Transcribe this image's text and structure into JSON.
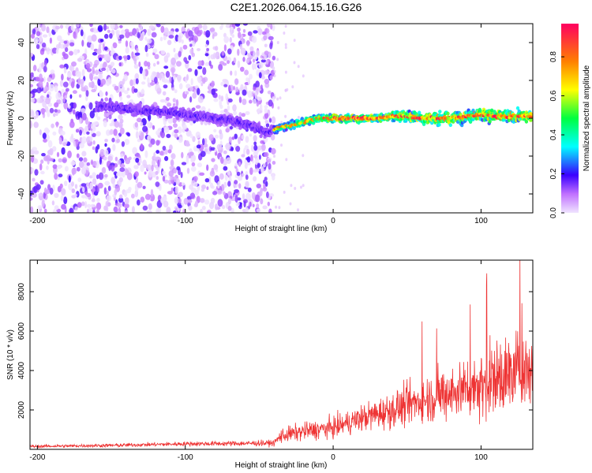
{
  "title": "C2E1.2026.064.15.16.G26",
  "chart_data": [
    {
      "type": "heatmap",
      "xlabel": "Height of straight line (km)",
      "ylabel": "Frequency (Hz)",
      "xlim": [
        -205,
        135
      ],
      "ylim": [
        -50,
        50
      ],
      "xticks": [
        -200,
        -100,
        0,
        100
      ],
      "yticks": [
        -40,
        -20,
        0,
        20,
        40
      ],
      "colorbar": {
        "label": "Normalized spectral amplitude",
        "range": [
          0,
          0.97
        ],
        "ticks": [
          0.0,
          0.2,
          0.4,
          0.6,
          0.8
        ]
      },
      "ridge": {
        "x": [
          -200,
          -180,
          -160,
          -150,
          -140,
          -130,
          -120,
          -110,
          -100,
          -90,
          -80,
          -70,
          -60,
          -55,
          -50,
          -45,
          -40,
          -35,
          -30,
          -25,
          -20,
          -10,
          0,
          10,
          20,
          30,
          40,
          50,
          60,
          70,
          80,
          90,
          100,
          110,
          120,
          130
        ],
        "freq": [
          6,
          6,
          6,
          6,
          5,
          4,
          4,
          3,
          2,
          1,
          0,
          -1,
          -3,
          -4,
          -6,
          -8,
          -6,
          -5,
          -4,
          -3,
          -2,
          0,
          0,
          0,
          0,
          0,
          1,
          1,
          0,
          0,
          0,
          1,
          2,
          1,
          1,
          1
        ]
      },
      "noise_region_x": [
        -205,
        -40
      ]
    },
    {
      "type": "line",
      "xlabel": "Height of straight line (km)",
      "ylabel": "SNR (10 * v/v)",
      "xlim": [
        -205,
        135
      ],
      "ylim": [
        0,
        9600
      ],
      "xticks": [
        -200,
        -100,
        0,
        100
      ],
      "yticks": [
        2000,
        4000,
        6000,
        8000
      ],
      "series": [
        {
          "name": "SNR",
          "color": "#ee3333",
          "envelope_x": [
            -205,
            -150,
            -100,
            -60,
            -40,
            -35,
            -20,
            0,
            20,
            40,
            60,
            80,
            100,
            115,
            135
          ],
          "envelope_mean": [
            150,
            200,
            280,
            300,
            320,
            700,
            900,
            1100,
            1600,
            2000,
            2500,
            2900,
            3300,
            3700,
            4200
          ],
          "envelope_spread": [
            100,
            120,
            150,
            180,
            200,
            500,
            600,
            700,
            900,
            1200,
            1500,
            1800,
            2200,
            2800,
            2500
          ]
        }
      ]
    }
  ]
}
